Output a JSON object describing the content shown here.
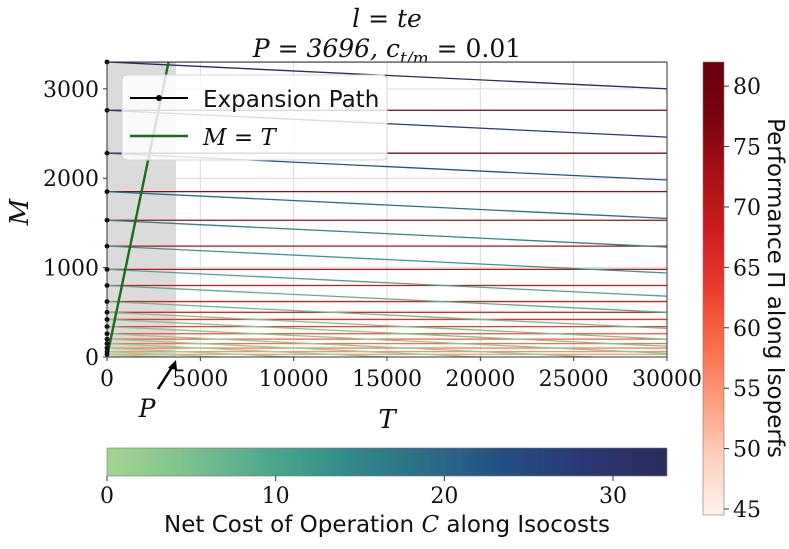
{
  "chart_data": {
    "type": "line",
    "title_line1": "l = te",
    "title_line2": "P = 3696, c",
    "title_sub": "t/m",
    "title_tail": " = 0.01",
    "xlabel": "T",
    "ylabel": "M",
    "xlim": [
      0,
      30000
    ],
    "ylim": [
      0,
      3300
    ],
    "x_ticks": [
      0,
      5000,
      10000,
      15000,
      20000,
      25000,
      30000
    ],
    "x_tick_labels": [
      "0",
      "5000",
      "10000",
      "15000",
      "20000",
      "25000",
      "30000"
    ],
    "y_ticks": [
      0,
      1000,
      2000,
      3000
    ],
    "y_tick_labels": [
      "0",
      "1000",
      "2000",
      "3000"
    ],
    "grid": true,
    "shaded_region": {
      "x_from": 0,
      "x_to": 3696
    },
    "annotation": {
      "text": "P",
      "x": 3696
    },
    "legend": {
      "position": "top-left",
      "entries": [
        {
          "label": "Expansion Path",
          "color": "#000000",
          "style": "line-marker"
        },
        {
          "label": "M = T",
          "color": "#1a6b1a",
          "style": "line"
        }
      ]
    },
    "line_M_equals_T": {
      "x": [
        0,
        3300
      ],
      "y": [
        0,
        3300
      ]
    },
    "expansion_path_points_M": [
      3300,
      2760,
      2280,
      1850,
      1530,
      1240,
      980,
      800,
      620,
      500,
      420,
      340,
      260,
      200,
      150,
      100,
      60,
      30
    ],
    "isocosts": {
      "slope_per_T": -0.01,
      "intercepts_M": [
        3300,
        2760,
        2280,
        1850,
        1530,
        1240,
        980,
        800,
        620,
        500,
        420,
        340,
        260,
        200,
        150,
        100,
        60,
        30
      ],
      "costs_C": [
        33,
        27.6,
        22.8,
        18.5,
        15.3,
        12.4,
        9.8,
        8.0,
        6.2,
        5.0,
        4.2,
        3.4,
        2.6,
        2.0,
        1.5,
        1.0,
        0.6,
        0.3
      ]
    },
    "isoperfs": {
      "M_levels": [
        3300,
        2760,
        2280,
        1850,
        1530,
        1240,
        980,
        800,
        620,
        500,
        420,
        340,
        260,
        200,
        150,
        100,
        60,
        30
      ],
      "performance": [
        80,
        78,
        76.5,
        75,
        73.5,
        72,
        70.5,
        69,
        67.5,
        66,
        64.5,
        63,
        61.5,
        60,
        58.5,
        57,
        55.5,
        54
      ]
    },
    "colorbar_right": {
      "label": "Performance Π along Isoperfs",
      "range": [
        44.5,
        82
      ],
      "ticks": [
        45,
        50,
        55,
        60,
        65,
        70,
        75,
        80
      ],
      "tick_labels": [
        "45",
        "50",
        "55",
        "60",
        "65",
        "70",
        "75",
        "80"
      ],
      "colors": [
        "#fff2ec",
        "#fdd1bd",
        "#fc9e7e",
        "#fb6c4c",
        "#ef3b2c",
        "#d01d1f",
        "#aa1016",
        "#7a0510",
        "#67000d"
      ]
    },
    "colorbar_bottom": {
      "label_prefix": "Net Cost of Operation ",
      "label_var": "C",
      "label_suffix": " along Isocosts",
      "range": [
        0,
        33.2
      ],
      "ticks": [
        0,
        10,
        20,
        30
      ],
      "tick_labels": [
        "0",
        "10",
        "20",
        "30"
      ],
      "colors": [
        "#a5d58f",
        "#7cc28e",
        "#4ea88d",
        "#348a8a",
        "#2a6c89",
        "#244e83",
        "#2a3772",
        "#2b2d5e"
      ]
    }
  }
}
